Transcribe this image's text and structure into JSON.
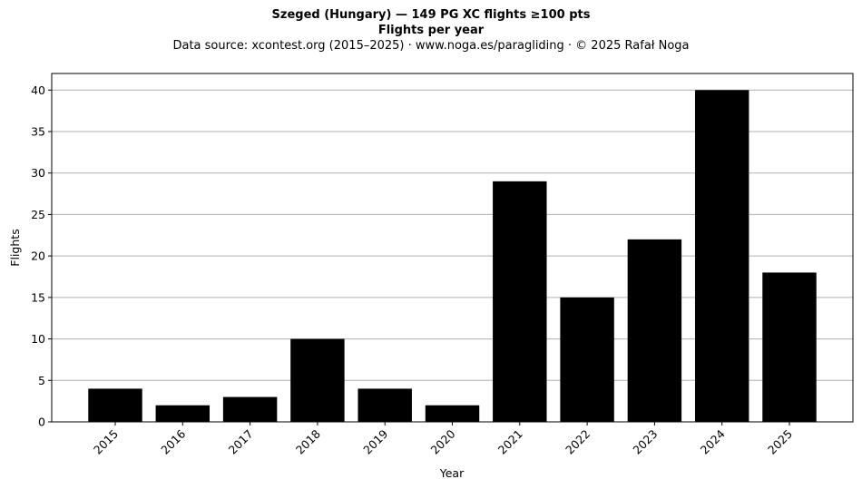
{
  "chart_data": {
    "type": "bar",
    "title": "Szeged (Hungary)  —  149 PG XC flights ≥100 pts",
    "subtitle": "Flights per year",
    "source_note": "Data source: xcontest.org (2015–2025)  ·  www.noga.es/paragliding  ·  © 2025 Rafał Noga",
    "xlabel": "Year",
    "ylabel": "Flights",
    "categories": [
      "2015",
      "2016",
      "2017",
      "2018",
      "2019",
      "2020",
      "2021",
      "2022",
      "2023",
      "2024",
      "2025"
    ],
    "values": [
      4,
      2,
      3,
      10,
      4,
      2,
      29,
      15,
      22,
      40,
      18
    ],
    "ylim": [
      0,
      42
    ],
    "yticks": [
      0,
      5,
      10,
      15,
      20,
      25,
      30,
      35,
      40
    ],
    "grid": "horizontal",
    "bar_color": "#000000",
    "grid_color": "#b0b0b0"
  }
}
